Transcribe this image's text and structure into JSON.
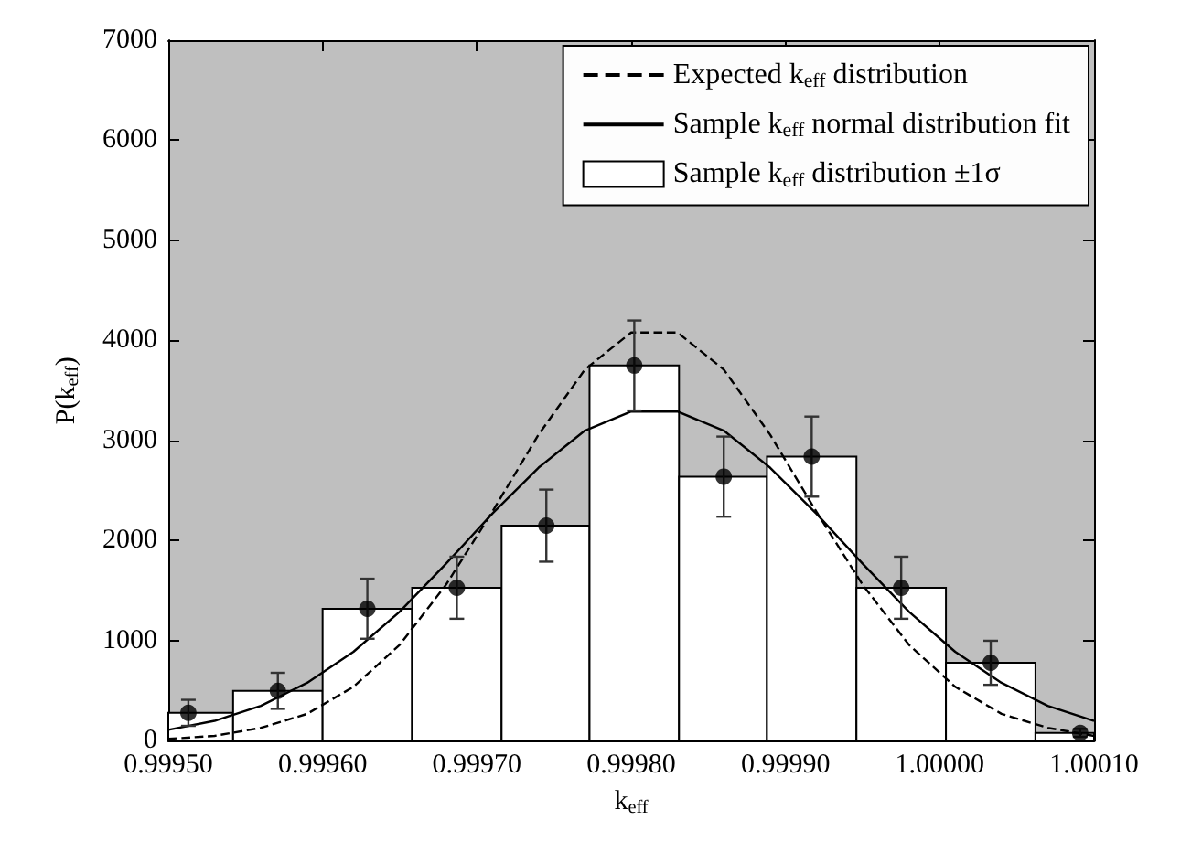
{
  "chart_data": {
    "type": "histogram",
    "xlabel": "k$_{eff}$",
    "ylabel": "P(k$_{eff}$)",
    "bins": [
      0.9995,
      0.999542,
      0.9996,
      0.999658,
      0.999716,
      0.999773,
      0.999831,
      0.999888,
      0.999946,
      1.000004,
      1.000062,
      1.0001
    ],
    "xlim": [
      0.9995,
      1.0001
    ],
    "xticks": [
      {
        "value": 0.9995,
        "label": "0.99950"
      },
      {
        "value": 0.9996,
        "label": "0.99960"
      },
      {
        "value": 0.9997,
        "label": "0.99970"
      },
      {
        "value": 0.9998,
        "label": "0.99980"
      },
      {
        "value": 0.9999,
        "label": "0.99990"
      },
      {
        "value": 1.0,
        "label": "1.00000"
      },
      {
        "value": 1.0001,
        "label": "1.00010"
      }
    ],
    "ylim": [
      0,
      7000
    ],
    "yticks": [
      0,
      1000,
      2000,
      3000,
      4000,
      5000,
      6000,
      7000
    ],
    "legend": "top right",
    "series": [
      {
        "type": "line",
        "name": "Expected k$_{eff}$ distribution",
        "color": "#000000",
        "line_style": "dashed",
        "marker": "none",
        "x": [
          0.9995,
          0.99953,
          0.99956,
          0.99959,
          0.99962,
          0.99965,
          0.99968,
          0.99971,
          0.99974,
          0.99977,
          0.9998,
          0.99983,
          0.99986,
          0.99989,
          0.99992,
          0.99995,
          0.99998,
          1.00001,
          1.00004,
          1.00007,
          1.0001
        ],
        "values": [
          20,
          50,
          130,
          270,
          540,
          960,
          1560,
          2290,
          3060,
          3710,
          4080,
          4080,
          3710,
          3060,
          2290,
          1560,
          960,
          540,
          270,
          130,
          50
        ]
      },
      {
        "type": "line",
        "name": "Sample k$_{eff}$ normal distribution fit",
        "color": "#000000",
        "line_style": "solid",
        "marker": "none",
        "x": [
          0.9995,
          0.99953,
          0.99956,
          0.99959,
          0.99962,
          0.99965,
          0.99968,
          0.99971,
          0.99974,
          0.99977,
          0.9998,
          0.99983,
          0.99986,
          0.99989,
          0.99992,
          0.99995,
          0.99998,
          1.00001,
          1.00004,
          1.00007,
          1.0001
        ],
        "values": [
          110,
          200,
          350,
          580,
          890,
          1290,
          1770,
          2270,
          2730,
          3100,
          3290,
          3290,
          3100,
          2730,
          2270,
          1770,
          1290,
          890,
          580,
          350,
          200
        ]
      },
      {
        "name": "Sample k$_{eff}$ distribution ±1σ",
        "color": "#ffffff",
        "values": [
          280,
          500,
          1320,
          1530,
          2150,
          3750,
          2640,
          2840,
          1530,
          780,
          80
        ]
      },
      {
        "type": "scatter",
        "color": "#000000",
        "marker": "circle",
        "x": [
          0.999513,
          0.999571,
          0.999629,
          0.999687,
          0.999745,
          0.999802,
          0.99986,
          0.999917,
          0.999975,
          1.000033,
          1.000091
        ],
        "values": [
          280,
          500,
          1320,
          1530,
          2150,
          3750,
          2640,
          2840,
          1530,
          780,
          80
        ],
        "errors": [
          130,
          180,
          300,
          310,
          360,
          450,
          400,
          400,
          310,
          220,
          40
        ]
      }
    ]
  }
}
